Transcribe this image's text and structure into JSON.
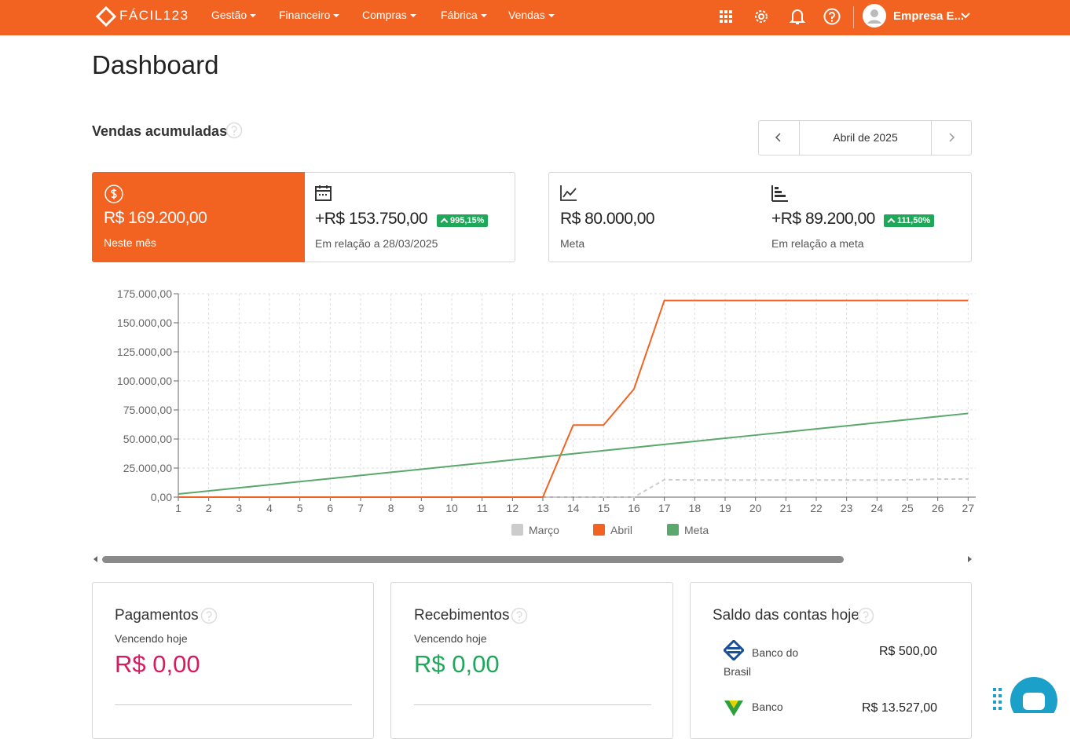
{
  "nav": {
    "logo": "FÁCIL123",
    "menu": [
      "Gestão",
      "Financeiro",
      "Compras",
      "Fábrica",
      "Vendas"
    ],
    "user": "Empresa E..."
  },
  "page_title": "Dashboard",
  "section_title": "Vendas acumuladas",
  "period": "Abril de 2025",
  "kpis": [
    {
      "value": "R$ 169.200,00",
      "label": "Neste mês"
    },
    {
      "value": "+R$ 153.750,00",
      "badge": "995,15%",
      "label": "Em relação a 28/03/2025"
    },
    {
      "value": "R$ 80.000,00",
      "label": "Meta"
    },
    {
      "value": "+R$ 89.200,00",
      "badge": "111,50%",
      "label": "Em relação a meta"
    }
  ],
  "chart_data": {
    "type": "line",
    "x": [
      1,
      2,
      3,
      4,
      5,
      6,
      7,
      8,
      9,
      10,
      11,
      12,
      13,
      14,
      15,
      16,
      17,
      18,
      19,
      20,
      21,
      22,
      23,
      24,
      25,
      26,
      27
    ],
    "xlim": [
      1,
      27.25
    ],
    "xticks": [
      1,
      2,
      3,
      4,
      5,
      6,
      7,
      8,
      9,
      10,
      11,
      12,
      13,
      14,
      15,
      16,
      17,
      18,
      19,
      20,
      21,
      22,
      23,
      24,
      25,
      26,
      27
    ],
    "ylim": [
      0,
      175000
    ],
    "yticks": [
      {
        "value": 0,
        "label": "0,00"
      },
      {
        "value": 25000,
        "label": "25.000,00"
      },
      {
        "value": 50000,
        "label": "50.000,00"
      },
      {
        "value": 75000,
        "label": "75.000,00"
      },
      {
        "value": 100000,
        "label": "100.000,00"
      },
      {
        "value": 125000,
        "label": "125.000,00"
      },
      {
        "value": 150000,
        "label": "150.000,00"
      },
      {
        "value": 175000,
        "label": "175.000,00"
      }
    ],
    "grid": true,
    "series": [
      {
        "name": "Março",
        "color": "#cccccc",
        "dashed": true,
        "values": [
          0,
          0,
          0,
          0,
          0,
          0,
          0,
          0,
          0,
          0,
          0,
          0,
          0,
          0,
          0,
          0,
          15000,
          14700,
          14700,
          14700,
          14700,
          14700,
          14700,
          14700,
          14800,
          15500,
          15500
        ]
      },
      {
        "name": "Abril",
        "color": "#f26322",
        "values": [
          0,
          0,
          0,
          0,
          0,
          0,
          0,
          0,
          0,
          0,
          0,
          0,
          0,
          62000,
          62000,
          93000,
          169200,
          169200,
          169200,
          169200,
          169200,
          169200,
          169200,
          169200,
          169200,
          169200,
          169200
        ]
      },
      {
        "name": "Meta",
        "color": "#5aa86b",
        "values": [
          2667,
          5333,
          8000,
          10667,
          13333,
          16000,
          18667,
          21333,
          24000,
          26667,
          29333,
          32000,
          34667,
          37333,
          40000,
          42667,
          45333,
          48000,
          50667,
          53333,
          56000,
          58667,
          61333,
          64000,
          66667,
          69333,
          72000
        ]
      }
    ]
  },
  "cards": [
    {
      "title": "Pagamentos",
      "subtitle": "Vencendo hoje",
      "value": "R$ 0,00"
    },
    {
      "title": "Recebimentos",
      "subtitle": "Vencendo hoje",
      "value": "R$ 0,00"
    },
    {
      "title": "Saldo das contas hoje",
      "accounts": [
        {
          "name": "Banco do Brasil",
          "value": "R$ 500,00"
        },
        {
          "name": "Banco",
          "value": "R$ 13.527,00"
        }
      ]
    }
  ]
}
